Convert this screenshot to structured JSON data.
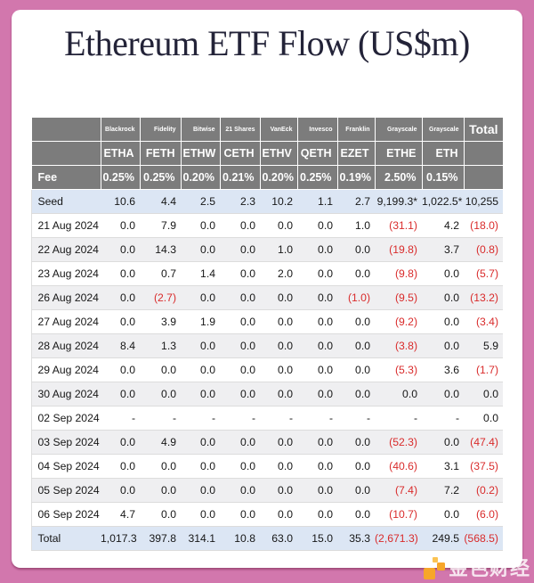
{
  "chart_data": {
    "type": "table",
    "title": "Ethereum ETF Flow (US$m)",
    "issuers": [
      "Blackrock",
      "Fidelity",
      "Bitwise",
      "21 Shares",
      "VanEck",
      "Invesco",
      "Franklin",
      "Grayscale",
      "Grayscale"
    ],
    "tickers": [
      "ETHA",
      "FETH",
      "ETHW",
      "CETH",
      "ETHV",
      "QETH",
      "EZET",
      "ETHE",
      "ETH"
    ],
    "total_header": "Total",
    "fee_row_label": "Fee",
    "fees": [
      "0.25%",
      "0.25%",
      "0.20%",
      "0.21%",
      "0.20%",
      "0.25%",
      "0.19%",
      "2.50%",
      "0.15%"
    ],
    "rows": [
      {
        "label": "Seed",
        "highlight": true,
        "values": [
          "10.6",
          "4.4",
          "2.5",
          "2.3",
          "10.2",
          "1.1",
          "2.7",
          "9,199.3*",
          "1,022.5*",
          "10,255"
        ]
      },
      {
        "label": "21 Aug 2024",
        "values": [
          "0.0",
          "7.9",
          "0.0",
          "0.0",
          "0.0",
          "0.0",
          "1.0",
          "(31.1)",
          "4.2",
          "(18.0)"
        ]
      },
      {
        "label": "22 Aug 2024",
        "values": [
          "0.0",
          "14.3",
          "0.0",
          "0.0",
          "1.0",
          "0.0",
          "0.0",
          "(19.8)",
          "3.7",
          "(0.8)"
        ]
      },
      {
        "label": "23 Aug 2024",
        "values": [
          "0.0",
          "0.7",
          "1.4",
          "0.0",
          "2.0",
          "0.0",
          "0.0",
          "(9.8)",
          "0.0",
          "(5.7)"
        ]
      },
      {
        "label": "26 Aug 2024",
        "values": [
          "0.0",
          "(2.7)",
          "0.0",
          "0.0",
          "0.0",
          "0.0",
          "(1.0)",
          "(9.5)",
          "0.0",
          "(13.2)"
        ]
      },
      {
        "label": "27 Aug 2024",
        "values": [
          "0.0",
          "3.9",
          "1.9",
          "0.0",
          "0.0",
          "0.0",
          "0.0",
          "(9.2)",
          "0.0",
          "(3.4)"
        ]
      },
      {
        "label": "28 Aug 2024",
        "values": [
          "8.4",
          "1.3",
          "0.0",
          "0.0",
          "0.0",
          "0.0",
          "0.0",
          "(3.8)",
          "0.0",
          "5.9"
        ]
      },
      {
        "label": "29 Aug 2024",
        "values": [
          "0.0",
          "0.0",
          "0.0",
          "0.0",
          "0.0",
          "0.0",
          "0.0",
          "(5.3)",
          "3.6",
          "(1.7)"
        ]
      },
      {
        "label": "30 Aug 2024",
        "values": [
          "0.0",
          "0.0",
          "0.0",
          "0.0",
          "0.0",
          "0.0",
          "0.0",
          "0.0",
          "0.0",
          "0.0"
        ]
      },
      {
        "label": "02 Sep 2024",
        "values": [
          "-",
          "-",
          "-",
          "-",
          "-",
          "-",
          "-",
          "-",
          "-",
          "0.0"
        ]
      },
      {
        "label": "03 Sep 2024",
        "values": [
          "0.0",
          "4.9",
          "0.0",
          "0.0",
          "0.0",
          "0.0",
          "0.0",
          "(52.3)",
          "0.0",
          "(47.4)"
        ]
      },
      {
        "label": "04 Sep 2024",
        "values": [
          "0.0",
          "0.0",
          "0.0",
          "0.0",
          "0.0",
          "0.0",
          "0.0",
          "(40.6)",
          "3.1",
          "(37.5)"
        ]
      },
      {
        "label": "05 Sep 2024",
        "values": [
          "0.0",
          "0.0",
          "0.0",
          "0.0",
          "0.0",
          "0.0",
          "0.0",
          "(7.4)",
          "7.2",
          "(0.2)"
        ]
      },
      {
        "label": "06 Sep 2024",
        "values": [
          "4.7",
          "0.0",
          "0.0",
          "0.0",
          "0.0",
          "0.0",
          "0.0",
          "(10.7)",
          "0.0",
          "(6.0)"
        ]
      },
      {
        "label": "Total",
        "highlight": true,
        "values": [
          "1,017.3",
          "397.8",
          "314.1",
          "10.8",
          "63.0",
          "15.0",
          "35.3",
          "(2,671.3)",
          "249.5",
          "(568.5)"
        ]
      }
    ],
    "layout_hints": {
      "negative_format": "parentheses-red",
      "highlight_rows": [
        "Seed",
        "Total"
      ]
    }
  },
  "watermark": {
    "text": "金色财经"
  },
  "colors": {
    "frame_pink": "#d277ad",
    "header_gray": "#7c7c7c",
    "highlight_blue": "#dce6f4",
    "stripe_gray": "#efeff1",
    "negative_red": "#d92b2b",
    "logo_orange": "#f7a62a"
  }
}
